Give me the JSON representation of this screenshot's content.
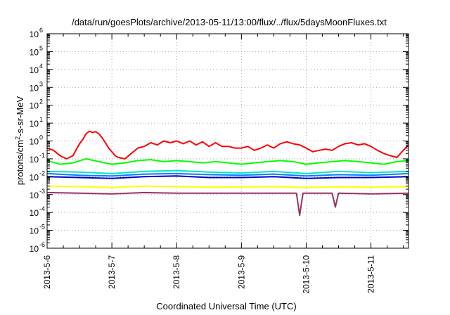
{
  "chart_data": {
    "type": "line",
    "title": "/data/run/goesPlots/archive/2013-05-11/13:00/flux/../flux/5daysMoonFluxes.txt",
    "xlabel": "Coordinated Universal Time (UTC)",
    "ylabel": "protons/cm2-s-sr-MeV",
    "ylabel_parts": {
      "main": "protons/cm",
      "sup": "2",
      "rest": "-s-sr-MeV"
    },
    "x_tick_labels": [
      "2013-5-6",
      "2013-5-7",
      "2013-5-8",
      "2013-5-9",
      "2013-5-10",
      "2013-5-11"
    ],
    "y_tick_exponents": [
      -6,
      -5,
      -4,
      -3,
      -2,
      -1,
      0,
      1,
      2,
      3,
      4,
      5,
      6
    ],
    "y_scale": "log",
    "ylim": [
      1e-06,
      1000000.0
    ],
    "xlim_days": [
      0,
      5.58
    ],
    "grid": true,
    "legend": "none",
    "series": [
      {
        "color": "#ff0000",
        "values": [
          [
            0,
            0.4
          ],
          [
            0.1,
            0.3
          ],
          [
            0.2,
            0.15
          ],
          [
            0.3,
            0.1
          ],
          [
            0.4,
            0.15
          ],
          [
            0.5,
            0.7
          ],
          [
            0.55,
            1.2
          ],
          [
            0.6,
            2.5
          ],
          [
            0.65,
            3.5
          ],
          [
            0.7,
            3.0
          ],
          [
            0.75,
            3.3
          ],
          [
            0.8,
            2.5
          ],
          [
            0.85,
            1.5
          ],
          [
            0.9,
            0.8
          ],
          [
            0.95,
            0.4
          ],
          [
            1.0,
            0.25
          ],
          [
            1.05,
            0.15
          ],
          [
            1.1,
            0.12
          ],
          [
            1.2,
            0.1
          ],
          [
            1.3,
            0.2
          ],
          [
            1.4,
            0.4
          ],
          [
            1.5,
            0.5
          ],
          [
            1.6,
            0.8
          ],
          [
            1.7,
            0.6
          ],
          [
            1.8,
            1.0
          ],
          [
            1.9,
            0.8
          ],
          [
            2.0,
            1.0
          ],
          [
            2.1,
            0.7
          ],
          [
            2.2,
            1.0
          ],
          [
            2.3,
            0.6
          ],
          [
            2.4,
            0.9
          ],
          [
            2.5,
            0.5
          ],
          [
            2.6,
            0.8
          ],
          [
            2.7,
            0.5
          ],
          [
            2.8,
            0.5
          ],
          [
            2.9,
            0.4
          ],
          [
            3.0,
            0.4
          ],
          [
            3.1,
            0.5
          ],
          [
            3.2,
            0.3
          ],
          [
            3.3,
            0.4
          ],
          [
            3.4,
            0.6
          ],
          [
            3.5,
            0.4
          ],
          [
            3.6,
            0.7
          ],
          [
            3.7,
            0.9
          ],
          [
            3.8,
            0.7
          ],
          [
            3.9,
            0.6
          ],
          [
            4.0,
            0.4
          ],
          [
            4.1,
            0.25
          ],
          [
            4.2,
            0.3
          ],
          [
            4.3,
            0.35
          ],
          [
            4.4,
            0.3
          ],
          [
            4.5,
            0.5
          ],
          [
            4.6,
            0.7
          ],
          [
            4.7,
            0.8
          ],
          [
            4.8,
            0.6
          ],
          [
            4.9,
            0.7
          ],
          [
            5.0,
            0.5
          ],
          [
            5.1,
            0.3
          ],
          [
            5.2,
            0.2
          ],
          [
            5.3,
            0.15
          ],
          [
            5.4,
            0.12
          ],
          [
            5.5,
            0.3
          ],
          [
            5.58,
            0.6
          ]
        ]
      },
      {
        "color": "#00ff00",
        "values": [
          [
            0,
            0.08
          ],
          [
            0.2,
            0.05
          ],
          [
            0.4,
            0.06
          ],
          [
            0.6,
            0.1
          ],
          [
            0.8,
            0.07
          ],
          [
            1.0,
            0.05
          ],
          [
            1.2,
            0.06
          ],
          [
            1.4,
            0.08
          ],
          [
            1.6,
            0.09
          ],
          [
            1.8,
            0.07
          ],
          [
            2.0,
            0.08
          ],
          [
            2.2,
            0.07
          ],
          [
            2.4,
            0.06
          ],
          [
            2.6,
            0.07
          ],
          [
            2.8,
            0.06
          ],
          [
            3.0,
            0.05
          ],
          [
            3.2,
            0.06
          ],
          [
            3.4,
            0.07
          ],
          [
            3.6,
            0.08
          ],
          [
            3.8,
            0.07
          ],
          [
            4.0,
            0.05
          ],
          [
            4.2,
            0.06
          ],
          [
            4.4,
            0.07
          ],
          [
            4.6,
            0.08
          ],
          [
            4.8,
            0.07
          ],
          [
            5.0,
            0.06
          ],
          [
            5.2,
            0.05
          ],
          [
            5.4,
            0.07
          ],
          [
            5.58,
            0.08
          ]
        ]
      },
      {
        "color": "#00e5cc",
        "values": [
          [
            0,
            0.02
          ],
          [
            0.5,
            0.018
          ],
          [
            1.0,
            0.015
          ],
          [
            1.5,
            0.02
          ],
          [
            2.0,
            0.022
          ],
          [
            2.5,
            0.018
          ],
          [
            3.0,
            0.016
          ],
          [
            3.5,
            0.02
          ],
          [
            4.0,
            0.015
          ],
          [
            4.5,
            0.02
          ],
          [
            5.0,
            0.017
          ],
          [
            5.58,
            0.02
          ]
        ]
      },
      {
        "color": "#0080ff",
        "values": [
          [
            0,
            0.015
          ],
          [
            0.5,
            0.012
          ],
          [
            1.0,
            0.011
          ],
          [
            1.5,
            0.014
          ],
          [
            2.0,
            0.015
          ],
          [
            2.5,
            0.013
          ],
          [
            3.0,
            0.012
          ],
          [
            3.5,
            0.014
          ],
          [
            4.0,
            0.011
          ],
          [
            4.5,
            0.013
          ],
          [
            5.0,
            0.012
          ],
          [
            5.58,
            0.015
          ]
        ]
      },
      {
        "color": "#0000cc",
        "values": [
          [
            0,
            0.01
          ],
          [
            0.5,
            0.009
          ],
          [
            1.0,
            0.008
          ],
          [
            1.5,
            0.01
          ],
          [
            2.0,
            0.011
          ],
          [
            2.5,
            0.009
          ],
          [
            3.0,
            0.009
          ],
          [
            3.5,
            0.01
          ],
          [
            4.0,
            0.008
          ],
          [
            4.5,
            0.009
          ],
          [
            5.0,
            0.009
          ],
          [
            5.58,
            0.01
          ]
        ]
      },
      {
        "color": "#ffff00",
        "values": [
          [
            0,
            0.003
          ],
          [
            0.5,
            0.0028
          ],
          [
            1.0,
            0.0025
          ],
          [
            1.5,
            0.003
          ],
          [
            2.0,
            0.0028
          ],
          [
            2.5,
            0.0026
          ],
          [
            3.0,
            0.0027
          ],
          [
            3.5,
            0.0028
          ],
          [
            4.0,
            0.0025
          ],
          [
            4.5,
            0.0027
          ],
          [
            5.0,
            0.0026
          ],
          [
            5.58,
            0.0028
          ]
        ]
      },
      {
        "color": "#993366",
        "values": [
          [
            0,
            0.0013
          ],
          [
            0.5,
            0.0012
          ],
          [
            1.0,
            0.0011
          ],
          [
            1.5,
            0.0013
          ],
          [
            2.0,
            0.0012
          ],
          [
            2.5,
            0.0012
          ],
          [
            3.0,
            0.0012
          ],
          [
            3.5,
            0.0012
          ],
          [
            3.85,
            0.0012
          ],
          [
            3.9,
            7e-05
          ],
          [
            3.95,
            0.0012
          ],
          [
            4.4,
            0.0012
          ],
          [
            4.45,
            0.0002
          ],
          [
            4.5,
            0.0012
          ],
          [
            5.0,
            0.0011
          ],
          [
            5.58,
            0.0012
          ]
        ]
      }
    ]
  }
}
